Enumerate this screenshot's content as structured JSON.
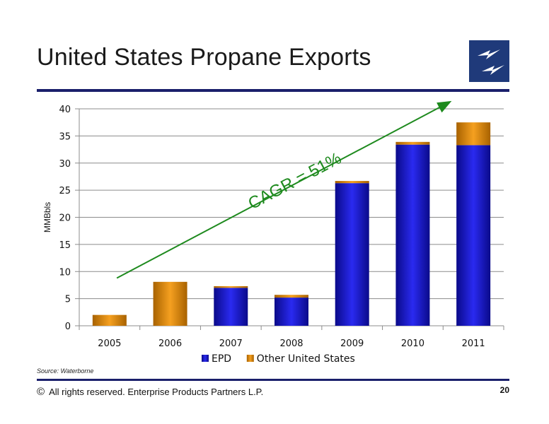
{
  "slide": {
    "title": "United States Propane Exports",
    "source": "Source:  Waterborne",
    "copyright_symbol": "©",
    "copyright": "All rights reserved. Enterprise Products Partners L.P.",
    "page_number": "20"
  },
  "colors": {
    "epd": "#1414d6",
    "other": "#e58e0a",
    "trend": "#1e8a1e",
    "rule": "#1a1f6b",
    "logo_bg": "#1f3a7a"
  },
  "chart_data": {
    "type": "bar",
    "stacked": true,
    "categories": [
      "2005",
      "2006",
      "2007",
      "2008",
      "2009",
      "2010",
      "2011"
    ],
    "series": [
      {
        "name": "EPD",
        "values": [
          0,
          0,
          7.0,
          5.2,
          26.3,
          33.4,
          33.3
        ]
      },
      {
        "name": "Other United States",
        "values": [
          2.0,
          8.1,
          0.3,
          0.5,
          0.4,
          0.5,
          4.2
        ]
      }
    ],
    "ylabel": "MMBbls",
    "ylim": [
      0,
      40
    ],
    "yticks": [
      0,
      5,
      10,
      15,
      20,
      25,
      30,
      35,
      40
    ],
    "grid": true,
    "legend": "bottom",
    "annotation": "CAGR = 51%"
  }
}
